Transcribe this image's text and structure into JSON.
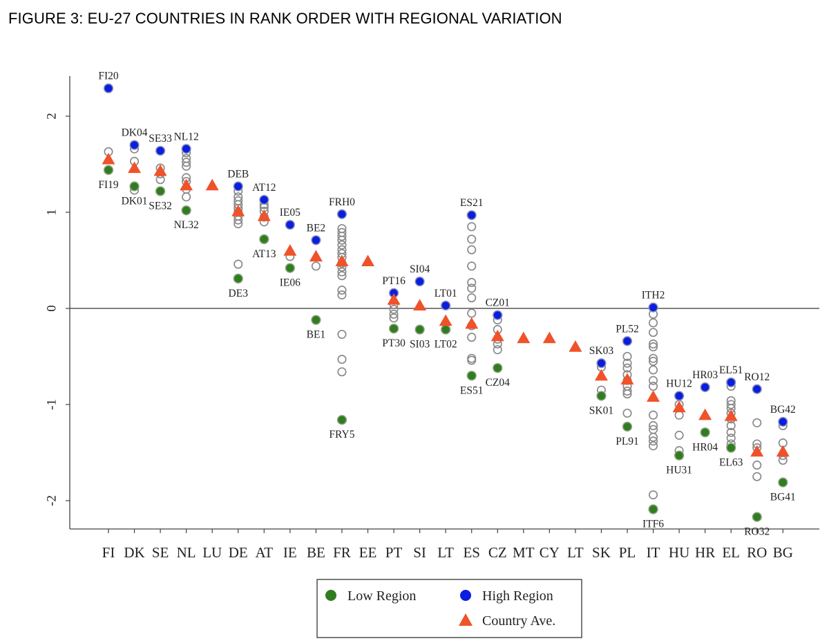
{
  "figure_title": "FIGURE 3: EU-27 COUNTRIES IN RANK ORDER WITH REGIONAL VARIATION",
  "colors": {
    "low": "#2f7d1f",
    "high": "#0a1ee0",
    "country": "#f0522a",
    "other_stroke": "#8a8a8a",
    "axis": "#404040"
  },
  "chart_data": {
    "type": "scatter",
    "title": "FIGURE 3: EU-27 COUNTRIES IN RANK ORDER WITH REGIONAL VARIATION",
    "xlabel": "",
    "ylabel": "",
    "ylim": [
      -2.3,
      2.45
    ],
    "yticks": [
      -2,
      -1,
      0,
      1,
      2
    ],
    "ytick_labels": [
      "-2",
      "-1",
      "0",
      "1",
      "2"
    ],
    "reference_line_y": 0,
    "legend": {
      "placement": "bottom-center",
      "entries": [
        {
          "key": "low",
          "label": "Low Region"
        },
        {
          "key": "high",
          "label": "High Region"
        },
        {
          "key": "country",
          "label": "Country Ave."
        }
      ]
    },
    "countries": [
      {
        "code": "FI",
        "avg": 1.55,
        "high": {
          "value": 2.29,
          "label": "FI20"
        },
        "low": {
          "value": 1.44,
          "label": "FI19"
        },
        "others": [
          1.63
        ]
      },
      {
        "code": "DK",
        "avg": 1.46,
        "high": {
          "value": 1.7,
          "label": "DK04"
        },
        "low": {
          "value": 1.27,
          "label": "DK01"
        },
        "others": [
          1.66,
          1.53,
          1.23
        ]
      },
      {
        "code": "SE",
        "avg": 1.43,
        "high": {
          "value": 1.64,
          "label": "SE33"
        },
        "low": {
          "value": 1.22,
          "label": "SE32"
        },
        "others": [
          1.46,
          1.4,
          1.34
        ]
      },
      {
        "code": "NL",
        "avg": 1.28,
        "high": {
          "value": 1.66,
          "label": "NL12"
        },
        "low": {
          "value": 1.02,
          "label": "NL32"
        },
        "others": [
          1.62,
          1.56,
          1.52,
          1.48,
          1.36,
          1.32,
          1.24,
          1.16
        ]
      },
      {
        "code": "LU",
        "avg": 1.28,
        "others": []
      },
      {
        "code": "DE",
        "avg": 1.01,
        "high": {
          "value": 1.27,
          "label": "DEB"
        },
        "low": {
          "value": 0.31,
          "label": "DE3"
        },
        "others": [
          1.22,
          1.16,
          1.12,
          1.08,
          1.04,
          1.0,
          0.96,
          0.92,
          0.88,
          0.46
        ]
      },
      {
        "code": "AT",
        "avg": 0.96,
        "high": {
          "value": 1.13,
          "label": "AT12"
        },
        "low": {
          "value": 0.72,
          "label": "AT13"
        },
        "others": [
          1.08,
          1.05,
          1.01,
          0.95,
          0.9
        ]
      },
      {
        "code": "IE",
        "avg": 0.6,
        "high": {
          "value": 0.87,
          "label": "IE05"
        },
        "low": {
          "value": 0.42,
          "label": "IE06"
        },
        "others": [
          0.54
        ]
      },
      {
        "code": "BE",
        "avg": 0.54,
        "high": {
          "value": 0.71,
          "label": "BE2"
        },
        "low": {
          "value": -0.12,
          "label": "BE1"
        },
        "others": [
          0.44
        ]
      },
      {
        "code": "FR",
        "avg": 0.49,
        "high": {
          "value": 0.98,
          "label": "FRH0"
        },
        "low": {
          "value": -1.16,
          "label": "FRY5"
        },
        "others": [
          0.83,
          0.79,
          0.75,
          0.71,
          0.66,
          0.61,
          0.57,
          0.53,
          0.47,
          0.43,
          0.38,
          0.34,
          0.19,
          0.14,
          -0.27,
          -0.53,
          -0.66
        ]
      },
      {
        "code": "EE",
        "avg": 0.49,
        "others": []
      },
      {
        "code": "PT",
        "avg": 0.09,
        "high": {
          "value": 0.16,
          "label": "PT16"
        },
        "low": {
          "value": -0.21,
          "label": "PT30"
        },
        "others": [
          0.04,
          -0.01,
          -0.06,
          -0.1
        ]
      },
      {
        "code": "SI",
        "avg": 0.03,
        "high": {
          "value": 0.28,
          "label": "SI04"
        },
        "low": {
          "value": -0.22,
          "label": "SI03"
        },
        "others": []
      },
      {
        "code": "LT",
        "avg": -0.13,
        "high": {
          "value": 0.03,
          "label": "LT01"
        },
        "low": {
          "value": -0.22,
          "label": "LT02"
        },
        "others": []
      },
      {
        "code": "ES",
        "avg": -0.16,
        "high": {
          "value": 0.97,
          "label": "ES21"
        },
        "low": {
          "value": -0.7,
          "label": "ES51"
        },
        "others": [
          0.85,
          0.72,
          0.61,
          0.44,
          0.27,
          0.21,
          0.11,
          -0.05,
          -0.18,
          -0.3,
          -0.52,
          -0.54
        ]
      },
      {
        "code": "CZ",
        "avg": -0.29,
        "high": {
          "value": -0.07,
          "label": "CZ01"
        },
        "low": {
          "value": -0.62,
          "label": "CZ04"
        },
        "others": [
          -0.12,
          -0.22,
          -0.32,
          -0.37,
          -0.43
        ]
      },
      {
        "code": "MT",
        "avg": -0.31,
        "others": []
      },
      {
        "code": "CY",
        "avg": -0.31,
        "others": []
      },
      {
        "code": "LT",
        "avg": -0.4,
        "others": []
      },
      {
        "code": "SK",
        "avg": -0.7,
        "high": {
          "value": -0.57,
          "label": "SK03"
        },
        "low": {
          "value": -0.91,
          "label": "SK01"
        },
        "others": [
          -0.61,
          -0.85
        ]
      },
      {
        "code": "PL",
        "avg": -0.74,
        "high": {
          "value": -0.34,
          "label": "PL52"
        },
        "low": {
          "value": -1.23,
          "label": "PL91"
        },
        "others": [
          -0.5,
          -0.57,
          -0.62,
          -0.69,
          -0.75,
          -0.81,
          -0.86,
          -0.89,
          -1.09
        ]
      },
      {
        "code": "IT",
        "avg": -0.92,
        "high": {
          "value": 0.01,
          "label": "ITH2"
        },
        "low": {
          "value": -2.09,
          "label": "ITF6"
        },
        "others": [
          -0.06,
          -0.15,
          -0.25,
          -0.37,
          -0.4,
          -0.52,
          -0.55,
          -0.64,
          -0.75,
          -0.81,
          -1.11,
          -1.22,
          -1.26,
          -1.34,
          -1.38,
          -1.43,
          -1.94
        ]
      },
      {
        "code": "HU",
        "avg": -1.03,
        "high": {
          "value": -0.91,
          "label": "HU12"
        },
        "low": {
          "value": -1.53,
          "label": "HU31"
        },
        "others": [
          -1.0,
          -1.11,
          -1.32,
          -1.48
        ]
      },
      {
        "code": "HR",
        "avg": -1.11,
        "high": {
          "value": -0.82,
          "label": "HR03"
        },
        "low": {
          "value": -1.29,
          "label": "HR04"
        },
        "others": []
      },
      {
        "code": "EL",
        "avg": -1.12,
        "high": {
          "value": -0.77,
          "label": "EL51"
        },
        "low": {
          "value": -1.45,
          "label": "EL63"
        },
        "others": [
          -0.81,
          -0.96,
          -1.0,
          -1.04,
          -1.09,
          -1.15,
          -1.22,
          -1.29,
          -1.35,
          -1.41
        ]
      },
      {
        "code": "RO",
        "avg": -1.49,
        "high": {
          "value": -0.84,
          "label": "RO12"
        },
        "low": {
          "value": -2.17,
          "label": "RO32"
        },
        "others": [
          -1.19,
          -1.41,
          -1.45,
          -1.63,
          -1.75
        ]
      },
      {
        "code": "BG",
        "avg": -1.49,
        "high": {
          "value": -1.18,
          "label": "BG42"
        },
        "low": {
          "value": -1.81,
          "label": "BG41"
        },
        "others": [
          -1.22,
          -1.4,
          -1.53,
          -1.58
        ]
      }
    ]
  }
}
